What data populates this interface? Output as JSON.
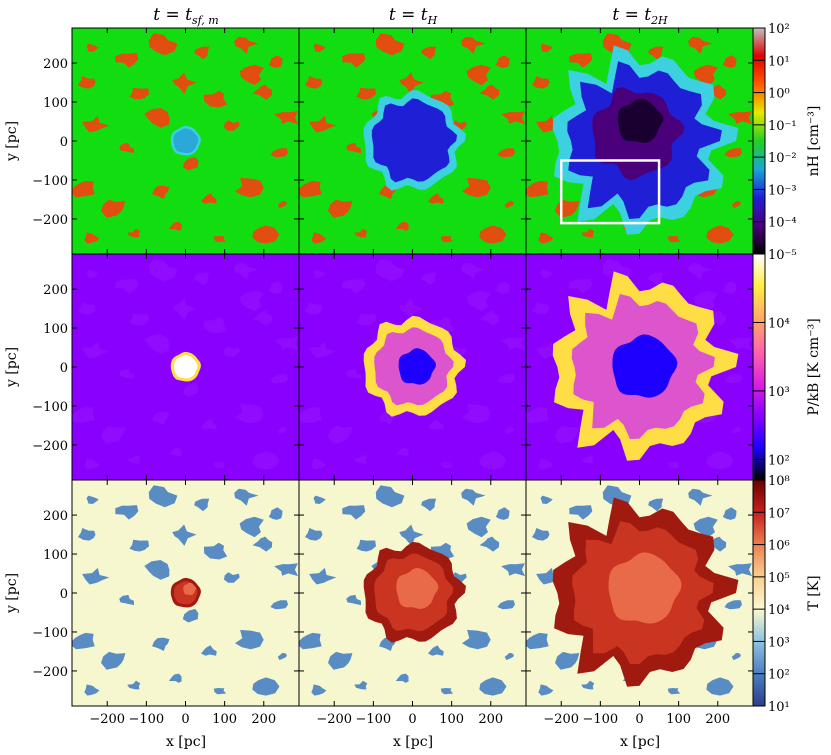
{
  "chart_data": {
    "type": "heatmap",
    "layout": "3x3 panel grid",
    "column_titles": [
      {
        "main": "t = t",
        "sub": "sf, m"
      },
      {
        "main": "t = t",
        "sub": "H"
      },
      {
        "main": "t = t",
        "sub": "2H"
      }
    ],
    "xlabel": "x [pc]",
    "ylabel": "y [pc]",
    "xlim": [
      -290,
      290
    ],
    "ylim": [
      -290,
      290
    ],
    "x_ticks": [
      "−200",
      "−100",
      "0",
      "100",
      "200"
    ],
    "x_tick_values": [
      -200,
      -100,
      0,
      100,
      200
    ],
    "y_ticks": [
      "200",
      "100",
      "0",
      "−100",
      "−200"
    ],
    "y_tick_values": [
      200,
      100,
      0,
      -100,
      -200
    ],
    "rows": [
      {
        "quantity": "n_H",
        "colorbar_label": "nH [cm⁻³]",
        "scale": "log",
        "range": [
          1e-05,
          100.0
        ],
        "colorbar_ticks": [
          "10²",
          "10¹",
          "10⁰",
          "10⁻¹",
          "10⁻²",
          "10⁻³",
          "10⁻⁴",
          "10⁻⁵"
        ],
        "colormap": [
          "#000000",
          "#4a007a",
          "#1f1fd6",
          "#1aa6d6",
          "#22d022",
          "#e8e800",
          "#ff5a00",
          "#e00000",
          "#c0c0c0"
        ],
        "background_color": "#11dd11",
        "clump_color": "#ee4411",
        "bubble_radius_pc": [
          35,
          115,
          200
        ],
        "inset_box_pc": {
          "panel": 3,
          "x": [
            -200,
            50
          ],
          "y": [
            -210,
            -50
          ]
        }
      },
      {
        "quantity": "P/k_B",
        "colorbar_label": "P/kB [K cm⁻³]",
        "scale": "log",
        "range": [
          50,
          100000.0
        ],
        "colorbar_ticks": [
          "10⁴",
          "10³",
          "10²"
        ],
        "colormap": [
          "#000000",
          "#1e00ff",
          "#8800ff",
          "#dd22dd",
          "#ff66aa",
          "#ffaa66",
          "#ffee44",
          "#ffffff"
        ],
        "background_color": "#8a00ff",
        "shell_color": "#ffdd44",
        "bubble_radius_pc": [
          35,
          115,
          200
        ]
      },
      {
        "quantity": "T",
        "colorbar_label": "T [K]",
        "scale": "log",
        "range": [
          10,
          100000000.0
        ],
        "colorbar_ticks": [
          "10⁸",
          "10⁷",
          "10⁶",
          "10⁵",
          "10⁴",
          "10³",
          "10²",
          "10¹"
        ],
        "colormap": [
          "#2c3e8f",
          "#4a7fc0",
          "#8ec2e0",
          "#fbf9d0",
          "#f8d090",
          "#ec8050",
          "#c62020",
          "#6a0000"
        ],
        "background_color": "#f7f7cf",
        "cloud_color": "#4f86c2",
        "hot_color": "#c93520",
        "bubble_radius_pc": [
          35,
          115,
          200
        ]
      }
    ]
  }
}
